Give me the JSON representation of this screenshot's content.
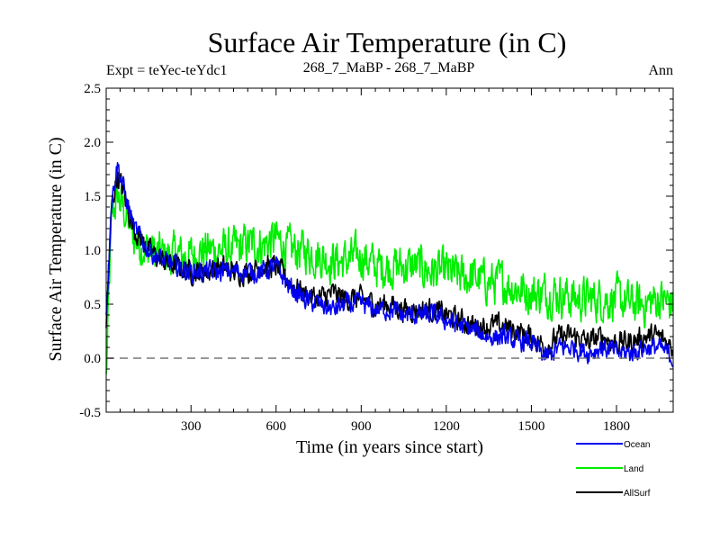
{
  "chart_data": {
    "type": "line",
    "title": "Surface Air Temperature (in C)",
    "subtitle_left": "Expt = teYec-teYdc1",
    "subtitle_center": "268_7_MaBP - 268_7_MaBP",
    "subtitle_right": "Ann",
    "xlabel": "Time (in years since start)",
    "ylabel": "Surface Air Temperature (in C)",
    "xlim": [
      1,
      2000
    ],
    "ylim": [
      -0.5,
      2.5
    ],
    "xticks": [
      300,
      600,
      900,
      1200,
      1500,
      1800
    ],
    "xtick_labels": [
      "300",
      "600",
      "900",
      "1200",
      "1500",
      "1800"
    ],
    "yticks": [
      -0.5,
      0.0,
      0.5,
      1.0,
      1.5,
      2.0,
      2.5
    ],
    "ytick_labels": [
      "-0.5",
      "0.0",
      "0.5",
      "1.0",
      "1.5",
      "2.0",
      "2.5"
    ],
    "reference_line": 0.0,
    "legend": [
      "Ocean",
      "Land",
      "AllSurf"
    ],
    "legend_placement": "bottom-right, below plot",
    "series": [
      {
        "name": "Land",
        "color": "#00ee00",
        "x": [
          1,
          20,
          40,
          60,
          80,
          100,
          150,
          200,
          250,
          300,
          350,
          400,
          450,
          500,
          550,
          600,
          650,
          700,
          750,
          800,
          850,
          900,
          950,
          1000,
          1050,
          1100,
          1150,
          1200,
          1250,
          1300,
          1350,
          1400,
          1450,
          1500,
          1550,
          1600,
          1650,
          1700,
          1750,
          1800,
          1850,
          1900,
          1950,
          2000
        ],
        "values": [
          -0.2,
          1.3,
          1.5,
          1.4,
          1.25,
          1.1,
          1.0,
          0.95,
          0.95,
          0.95,
          1.0,
          1.0,
          1.0,
          1.05,
          1.05,
          1.1,
          1.0,
          1.0,
          0.95,
          0.9,
          0.9,
          0.95,
          0.85,
          0.85,
          0.85,
          0.85,
          0.8,
          0.8,
          0.75,
          0.75,
          0.7,
          0.7,
          0.65,
          0.6,
          0.6,
          0.6,
          0.55,
          0.55,
          0.55,
          0.55,
          0.5,
          0.5,
          0.55,
          0.5
        ]
      },
      {
        "name": "AllSurf",
        "color": "#000000",
        "x": [
          1,
          20,
          40,
          60,
          80,
          100,
          150,
          200,
          250,
          300,
          350,
          400,
          450,
          500,
          550,
          600,
          650,
          700,
          750,
          800,
          850,
          900,
          950,
          1000,
          1050,
          1100,
          1150,
          1200,
          1250,
          1300,
          1350,
          1400,
          1450,
          1500,
          1550,
          1600,
          1650,
          1700,
          1750,
          1800,
          1850,
          1900,
          1950,
          2000
        ],
        "values": [
          0.3,
          1.4,
          1.7,
          1.55,
          1.35,
          1.2,
          1.0,
          0.9,
          0.85,
          0.8,
          0.8,
          0.85,
          0.8,
          0.8,
          0.85,
          0.85,
          0.7,
          0.6,
          0.55,
          0.6,
          0.55,
          0.55,
          0.5,
          0.5,
          0.45,
          0.45,
          0.45,
          0.4,
          0.35,
          0.3,
          0.3,
          0.3,
          0.25,
          0.2,
          0.1,
          0.2,
          0.2,
          0.15,
          0.2,
          0.15,
          0.15,
          0.2,
          0.2,
          0.1
        ]
      },
      {
        "name": "Ocean",
        "color": "#0000ee",
        "x": [
          1,
          20,
          40,
          60,
          80,
          100,
          150,
          200,
          250,
          300,
          350,
          400,
          450,
          500,
          550,
          600,
          650,
          700,
          750,
          800,
          850,
          900,
          950,
          1000,
          1050,
          1100,
          1150,
          1200,
          1250,
          1300,
          1350,
          1400,
          1450,
          1500,
          1550,
          1600,
          1650,
          1700,
          1750,
          1800,
          1850,
          1900,
          1950,
          2000
        ],
        "values": [
          0.4,
          1.45,
          1.8,
          1.6,
          1.4,
          1.2,
          1.0,
          0.9,
          0.85,
          0.8,
          0.8,
          0.8,
          0.8,
          0.8,
          0.8,
          0.85,
          0.65,
          0.55,
          0.5,
          0.45,
          0.5,
          0.5,
          0.45,
          0.45,
          0.4,
          0.4,
          0.4,
          0.35,
          0.3,
          0.25,
          0.2,
          0.2,
          0.15,
          0.15,
          0.0,
          0.1,
          0.1,
          0.05,
          0.1,
          0.05,
          0.05,
          0.1,
          0.1,
          0.0
        ]
      }
    ]
  }
}
